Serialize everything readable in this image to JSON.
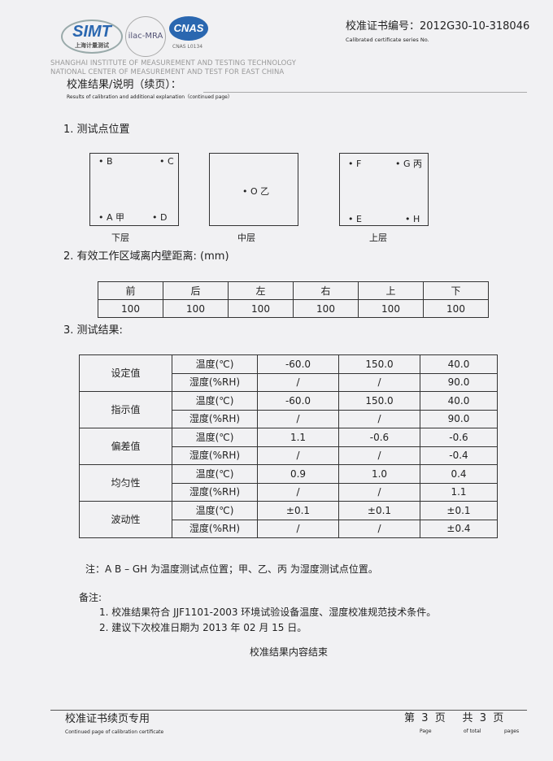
{
  "header": {
    "logo_simt": "SIMT",
    "logo_simt_cn": "上海计量测试",
    "logo_ilac": "ilac-MRA",
    "logo_cnas": "CNAS",
    "logo_cnas_sub": "CNAS L0134",
    "institute_line1": "SHANGHAI INSTITUTE OF MEASUREMENT AND TESTING TECHNOLOGY",
    "institute_line2": "NATIONAL CENTER OF MEASUREMENT AND TEST FOR EAST CHINA",
    "cert_label": "校准证书编号：2012G30-10-318046",
    "cert_label_en": "Calibrated certificate series No."
  },
  "title": {
    "cn": "校准结果/说明（续页）：",
    "en": "Results of calibration and additional explanation（continued page）"
  },
  "section1": {
    "heading": "1. 测试点位置",
    "boxes": [
      {
        "caption": "下层",
        "points": [
          "• B",
          "• C",
          "• A 甲",
          "• D"
        ]
      },
      {
        "caption": "中层",
        "points": [
          "• O 乙"
        ]
      },
      {
        "caption": "上层",
        "points": [
          "• F",
          "• G 丙",
          "• E",
          "• H"
        ]
      }
    ]
  },
  "section2": {
    "heading": "2. 有效工作区域离内壁距离: (mm)",
    "headers": [
      "前",
      "后",
      "左",
      "右",
      "上",
      "下"
    ],
    "values": [
      "100",
      "100",
      "100",
      "100",
      "100",
      "100"
    ]
  },
  "section3": {
    "heading": "3. 测试结果:",
    "groups": [
      {
        "name": "设定值",
        "rows": [
          [
            "温度(℃)",
            "-60.0",
            "150.0",
            "40.0"
          ],
          [
            "湿度(%RH)",
            "/",
            "/",
            "90.0"
          ]
        ]
      },
      {
        "name": "指示值",
        "rows": [
          [
            "温度(℃)",
            "-60.0",
            "150.0",
            "40.0"
          ],
          [
            "湿度(%RH)",
            "/",
            "/",
            "90.0"
          ]
        ]
      },
      {
        "name": "偏差值",
        "rows": [
          [
            "温度(℃)",
            "1.1",
            "-0.6",
            "-0.6"
          ],
          [
            "湿度(%RH)",
            "/",
            "/",
            "-0.4"
          ]
        ]
      },
      {
        "name": "均匀性",
        "rows": [
          [
            "温度(℃)",
            "0.9",
            "1.0",
            "0.4"
          ],
          [
            "湿度(%RH)",
            "/",
            "/",
            "1.1"
          ]
        ]
      },
      {
        "name": "波动性",
        "rows": [
          [
            "温度(℃)",
            "±0.1",
            "±0.1",
            "±0.1"
          ],
          [
            "湿度(%RH)",
            "/",
            "/",
            "±0.4"
          ]
        ]
      }
    ]
  },
  "note": "注：A B – GH  为温度测试点位置；甲、乙、丙  为湿度测试点位置。",
  "remarks": {
    "label": "备注:",
    "items": [
      "1. 校准结果符合 JJF1101-2003  环境试验设备温度、湿度校准规范技术条件。",
      "2. 建议下次校准日期为 2013 年 02 月 15 日。"
    ]
  },
  "end": "校准结果内容结束",
  "footer": {
    "cn": "校准证书续页专用",
    "en": "Continued page of calibration certificate",
    "page_cn": "第  3  页     共  3  页",
    "page_en": "Page",
    "of_total": "of total",
    "pages": "pages"
  }
}
